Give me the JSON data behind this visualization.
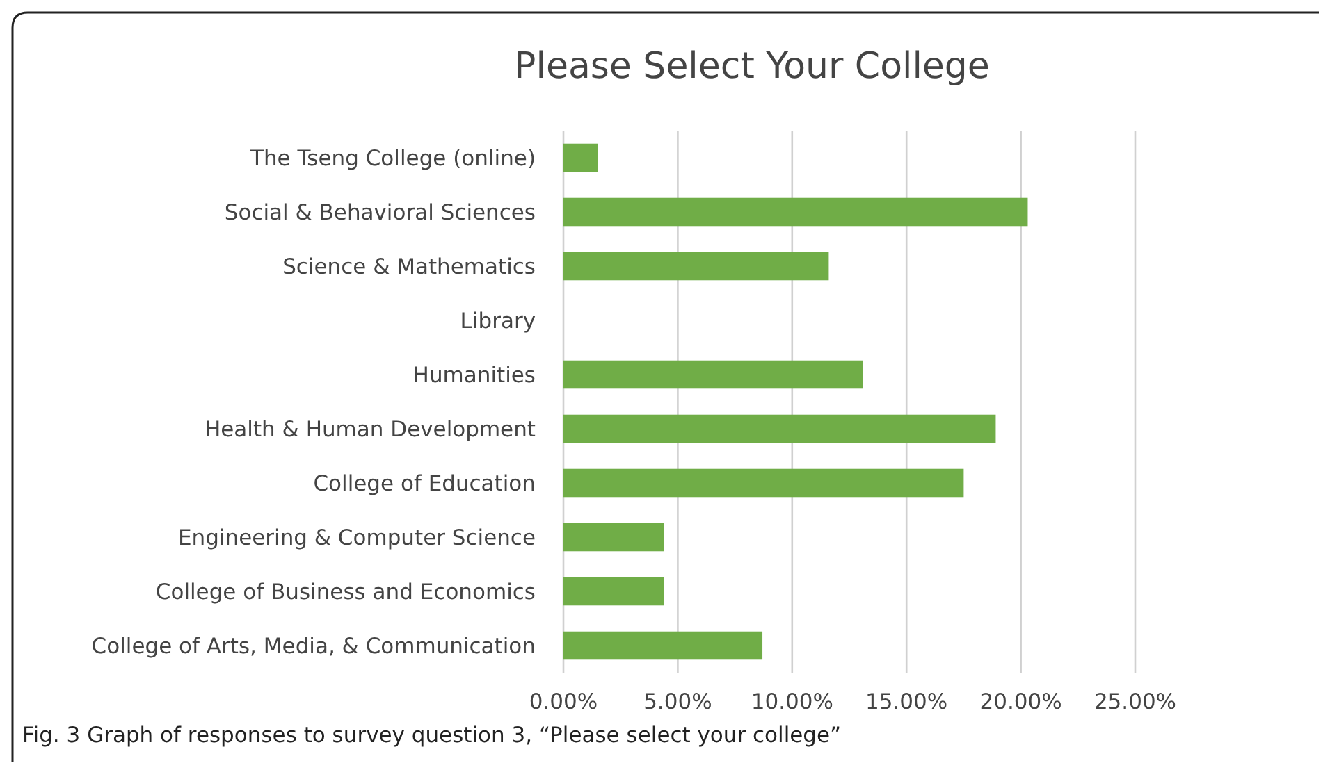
{
  "chart_data": {
    "type": "bar",
    "orientation": "horizontal",
    "title": "Please Select Your College",
    "categories": [
      "The Tseng College (online)",
      "Social & Behavioral Sciences",
      "Science & Mathematics",
      "Library",
      "Humanities",
      "Health & Human Development",
      "College of Education",
      "Engineering & Computer Science",
      "College of Business and Economics",
      "College of Arts, Media, & Communication"
    ],
    "values": [
      1.5,
      20.3,
      11.6,
      0,
      13.1,
      18.9,
      17.5,
      4.4,
      4.4,
      8.7
    ],
    "color": "#70ad47",
    "xlim": [
      0,
      25
    ],
    "xticks": [
      {
        "value": 0,
        "label": "0.00%"
      },
      {
        "value": 5,
        "label": "5.00%"
      },
      {
        "value": 10,
        "label": "10.00%"
      },
      {
        "value": 15,
        "label": "15.00%"
      },
      {
        "value": 20,
        "label": "20.00%"
      },
      {
        "value": 25,
        "label": "25.00%"
      }
    ],
    "grid": "x",
    "annotations": [
      "Fig. 3 Graph of responses to survey question 3, “Please select your college”"
    ]
  }
}
